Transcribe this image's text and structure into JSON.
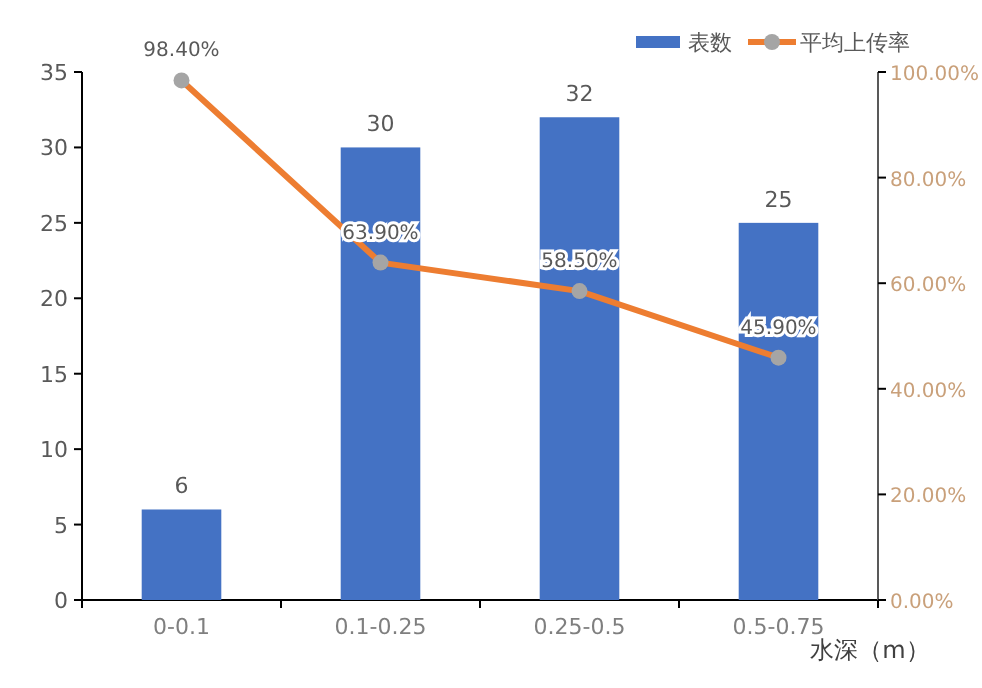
{
  "chart_data": {
    "type": "bar",
    "categories": [
      "0-0.1",
      "0.1-0.25",
      "0.25-0.5",
      "0.5-0.75"
    ],
    "series": [
      {
        "name": "表数",
        "color": "#4472c4",
        "values": [
          6,
          30,
          32,
          25
        ],
        "value_labels": [
          "6",
          "30",
          "32",
          "25"
        ]
      },
      {
        "name": "平均上传率",
        "type": "line",
        "axis": "y2",
        "color": "#ed7d31",
        "marker": "circle",
        "values": [
          98.4,
          63.9,
          58.5,
          45.9
        ],
        "value_labels": [
          "98.40%",
          "63.90%",
          "58.50%",
          "45.90%"
        ]
      }
    ],
    "xlabel": "水深（m）",
    "ylim": [
      0,
      35
    ],
    "yticks": [
      0,
      5,
      10,
      15,
      20,
      25,
      30,
      35
    ],
    "y2lim": [
      0,
      100
    ],
    "y2ticks": [
      {
        "value": 0,
        "label": "0.00%"
      },
      {
        "value": 20,
        "label": "20.00%"
      },
      {
        "value": 40,
        "label": "40.00%"
      },
      {
        "value": 60,
        "label": "60.00%"
      },
      {
        "value": 80,
        "label": "80.00%"
      },
      {
        "value": 100,
        "label": "100.00%"
      }
    ],
    "legend": "top right",
    "grid": false
  }
}
